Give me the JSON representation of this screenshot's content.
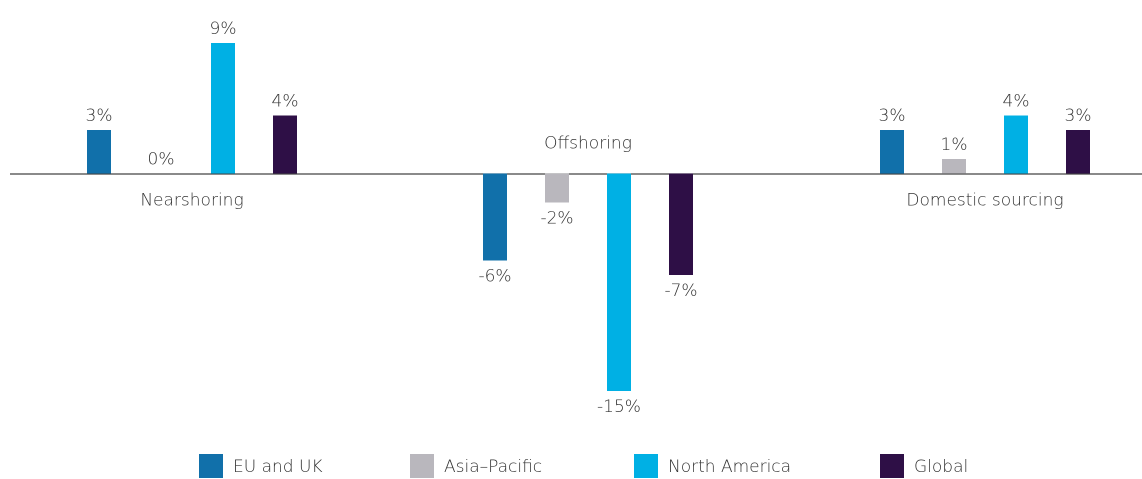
{
  "chart_data": {
    "type": "bar",
    "categories": [
      "Nearshoring",
      "Offshoring",
      "Domestic sourcing"
    ],
    "series": [
      {
        "name": "EU and UK",
        "color": "#1170aa",
        "values": [
          3,
          -6,
          3
        ],
        "value_labels": [
          "3%",
          "-6%",
          "3%"
        ]
      },
      {
        "name": "Asia–Pacific",
        "color": "#b9b7bd",
        "values": [
          0,
          -2,
          1
        ],
        "value_labels": [
          "0%",
          "-2%",
          "1%"
        ]
      },
      {
        "name": "North America",
        "color": "#00b0e4",
        "values": [
          9,
          -15,
          4
        ],
        "value_labels": [
          "9%",
          "-15%",
          "4%"
        ]
      },
      {
        "name": "Global",
        "color": "#2e0f46",
        "values": [
          4,
          -7,
          3
        ],
        "value_labels": [
          "4%",
          "-7%",
          "3%"
        ]
      }
    ],
    "legend": "bottom"
  }
}
